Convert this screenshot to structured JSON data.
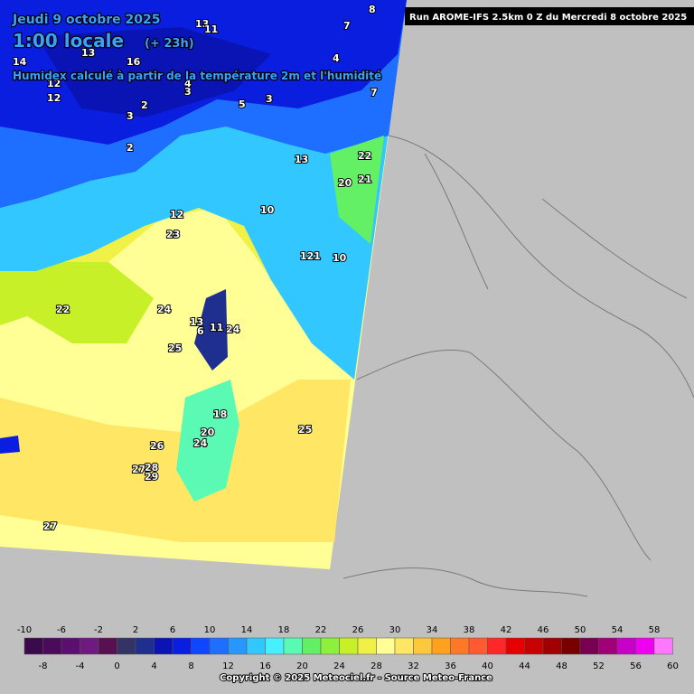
{
  "header": {
    "date": "Jeudi 9 octobre 2025",
    "time": "1:00 locale",
    "offset": "(+ 23h)",
    "subtitle": "Humidex calculé à partir de la température 2m et l'humidité",
    "run": "Run AROME-IFS 2.5km 0 Z du Mercredi 8 octobre 2025"
  },
  "map_labels": [
    "8",
    "7",
    "13",
    "11",
    "14",
    "13",
    "16",
    "12",
    "4",
    "3",
    "4",
    "7",
    "5",
    "3",
    "2",
    "3",
    "2",
    "13",
    "12",
    "22",
    "20",
    "21",
    "10",
    "12",
    "23",
    "121",
    "10",
    "22",
    "24",
    "25",
    "13",
    "6",
    "11",
    "24",
    "18",
    "20",
    "24",
    "26",
    "25",
    "27",
    "28",
    "29",
    "27"
  ],
  "legend": {
    "ticks": [
      -10,
      -8,
      -6,
      -4,
      -2,
      0,
      2,
      4,
      6,
      8,
      10,
      12,
      14,
      16,
      18,
      20,
      22,
      24,
      26,
      28,
      30,
      32,
      34,
      36,
      38,
      40,
      42,
      44,
      46,
      48,
      50,
      52,
      54,
      56,
      58,
      60
    ],
    "colors": [
      "#3a0a4a",
      "#4b0a5a",
      "#5c0f6e",
      "#6e1a7e",
      "#581050",
      "#333366",
      "#1f2f8f",
      "#0a14b4",
      "#0a1ee0",
      "#0f46ff",
      "#1e6eff",
      "#2896ff",
      "#32c8ff",
      "#46f0ff",
      "#5afab4",
      "#64f064",
      "#8cf03c",
      "#c8f028",
      "#f0f046",
      "#ffff96",
      "#ffe664",
      "#ffc83c",
      "#ffa01e",
      "#ff7828",
      "#ff5a32",
      "#ff2828",
      "#e60000",
      "#c80000",
      "#a00000",
      "#780000",
      "#780050",
      "#a00078",
      "#c800c8",
      "#f000f0",
      "#ff78ff"
    ]
  },
  "footer": {
    "copyright": "Copyright © 2025 Meteociel.fr - Source Meteo-France"
  }
}
